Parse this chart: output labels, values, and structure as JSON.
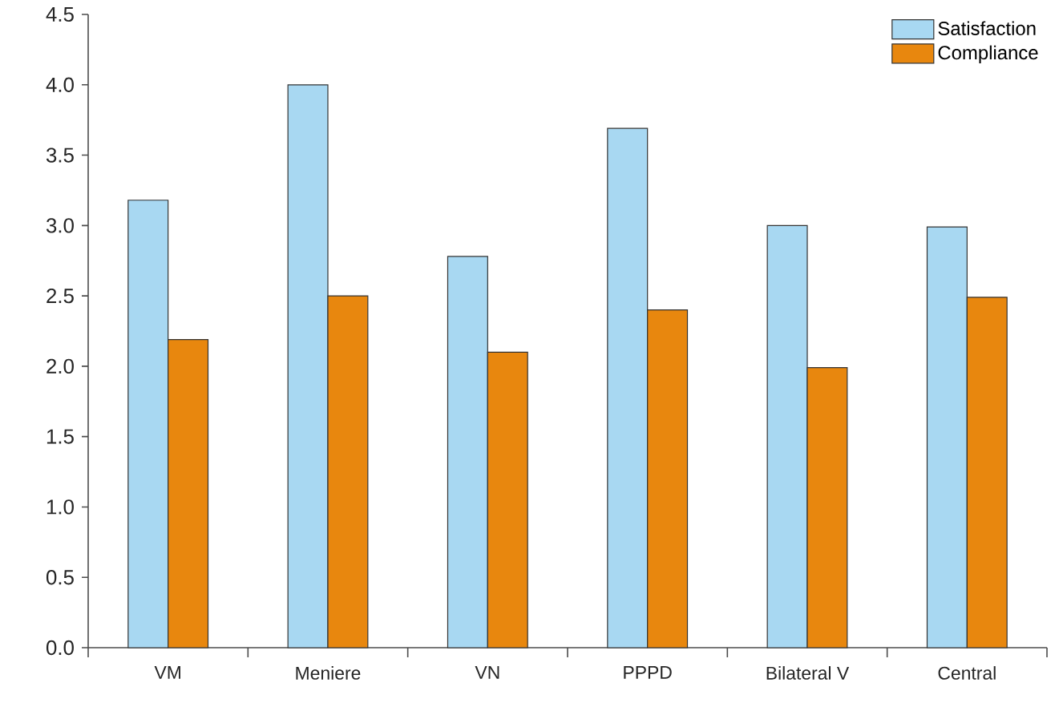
{
  "chart_data": {
    "type": "bar",
    "categories": [
      "VM",
      "Meniere",
      "VN",
      "PPPD",
      "Bilateral V",
      "Central"
    ],
    "series": [
      {
        "name": "Satisfaction",
        "color": "#a8d8f2",
        "values": [
          3.18,
          4.0,
          2.78,
          3.69,
          3.0,
          2.99
        ]
      },
      {
        "name": "Compliance",
        "color": "#e8870e",
        "values": [
          2.19,
          2.5,
          2.1,
          2.4,
          1.99,
          2.49
        ]
      }
    ],
    "ylim": [
      0,
      4.5
    ],
    "yticks": [
      {
        "value": 0,
        "label": "0.0"
      },
      {
        "value": 0.5,
        "label": "0.5"
      },
      {
        "value": 1,
        "label": "1.0"
      },
      {
        "value": 1.5,
        "label": "1.5"
      },
      {
        "value": 2,
        "label": "2.0"
      },
      {
        "value": 2.5,
        "label": "2.5"
      },
      {
        "value": 3,
        "label": "3.0"
      },
      {
        "value": 3.5,
        "label": "3.5"
      },
      {
        "value": 4,
        "label": "4.0"
      },
      {
        "value": 4.5,
        "label": "4.5"
      }
    ],
    "legend": "top right"
  }
}
